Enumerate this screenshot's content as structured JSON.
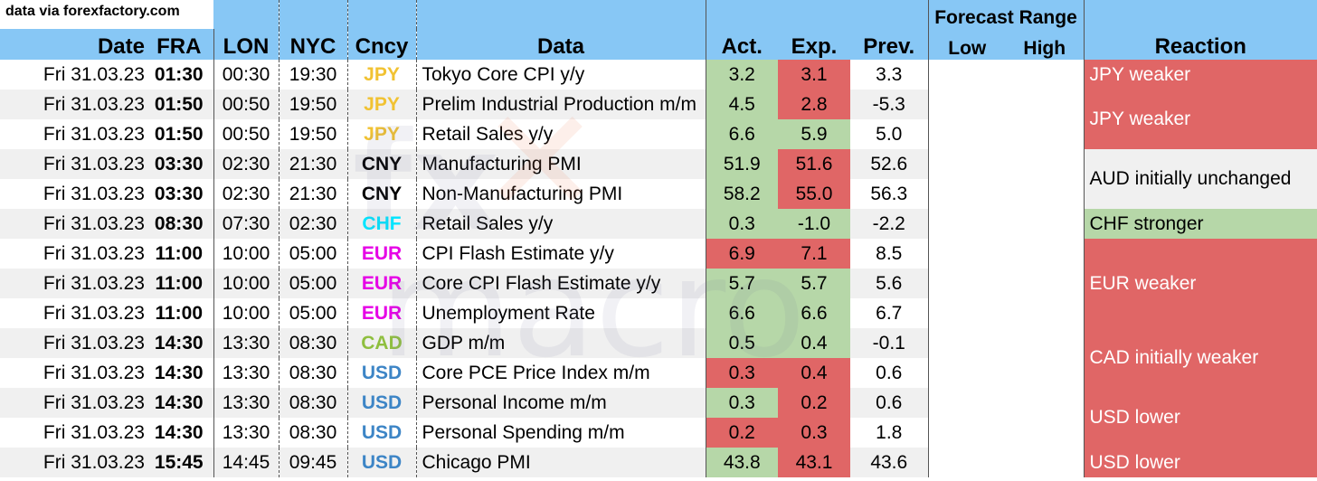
{
  "source_note": "data via forexfactory.com",
  "header": {
    "date": "Date",
    "fra": "FRA",
    "lon": "LON",
    "nyc": "NYC",
    "cncy": "Cncy",
    "data": "Data",
    "act": "Act.",
    "exp": "Exp.",
    "prev": "Prev.",
    "forecast_range": "Forecast Range",
    "low": "Low",
    "high": "High",
    "reaction": "Reaction"
  },
  "colors": {
    "header_bg": "#87c7f5",
    "green": "#b6d7a8",
    "red": "#e06666",
    "JPY": "#f1c232",
    "CNY": "#000000",
    "CHF": "#00e5ff",
    "EUR": "#e600e6",
    "CAD": "#8fbf3f",
    "USD": "#3d85c6"
  },
  "rows": [
    {
      "date": "Fri 31.03.23",
      "fra": "01:30",
      "lon": "00:30",
      "nyc": "19:30",
      "cncy": "JPY",
      "data": "Tokyo Core CPI y/y",
      "act": "3.2",
      "act_color": "green",
      "exp": "3.1",
      "exp_color": "red",
      "prev": "3.3"
    },
    {
      "date": "Fri 31.03.23",
      "fra": "01:50",
      "lon": "00:50",
      "nyc": "19:50",
      "cncy": "JPY",
      "data": "Prelim Industrial Production m/m",
      "act": "4.5",
      "act_color": "green",
      "exp": "2.8",
      "exp_color": "red",
      "prev": "-5.3"
    },
    {
      "date": "Fri 31.03.23",
      "fra": "01:50",
      "lon": "00:50",
      "nyc": "19:50",
      "cncy": "JPY",
      "data": "Retail Sales y/y",
      "act": "6.6",
      "act_color": "green",
      "exp": "5.9",
      "exp_color": "green",
      "prev": "5.0"
    },
    {
      "date": "Fri 31.03.23",
      "fra": "03:30",
      "lon": "02:30",
      "nyc": "21:30",
      "cncy": "CNY",
      "data": "Manufacturing PMI",
      "act": "51.9",
      "act_color": "green",
      "exp": "51.6",
      "exp_color": "red",
      "prev": "52.6"
    },
    {
      "date": "Fri 31.03.23",
      "fra": "03:30",
      "lon": "02:30",
      "nyc": "21:30",
      "cncy": "CNY",
      "data": "Non-Manufacturing PMI",
      "act": "58.2",
      "act_color": "green",
      "exp": "55.0",
      "exp_color": "red",
      "prev": "56.3"
    },
    {
      "date": "Fri 31.03.23",
      "fra": "08:30",
      "lon": "07:30",
      "nyc": "02:30",
      "cncy": "CHF",
      "data": "Retail Sales y/y",
      "act": "0.3",
      "act_color": "green",
      "exp": "-1.0",
      "exp_color": "green",
      "prev": "-2.2"
    },
    {
      "date": "Fri 31.03.23",
      "fra": "11:00",
      "lon": "10:00",
      "nyc": "05:00",
      "cncy": "EUR",
      "data": "CPI Flash Estimate y/y",
      "act": "6.9",
      "act_color": "red",
      "exp": "7.1",
      "exp_color": "red",
      "prev": "8.5"
    },
    {
      "date": "Fri 31.03.23",
      "fra": "11:00",
      "lon": "10:00",
      "nyc": "05:00",
      "cncy": "EUR",
      "data": "Core CPI Flash Estimate y/y",
      "act": "5.7",
      "act_color": "green",
      "exp": "5.7",
      "exp_color": "green",
      "prev": "5.6"
    },
    {
      "date": "Fri 31.03.23",
      "fra": "11:00",
      "lon": "10:00",
      "nyc": "05:00",
      "cncy": "EUR",
      "data": "Unemployment Rate",
      "act": "6.6",
      "act_color": "green",
      "exp": "6.6",
      "exp_color": "green",
      "prev": "6.7"
    },
    {
      "date": "Fri 31.03.23",
      "fra": "14:30",
      "lon": "13:30",
      "nyc": "08:30",
      "cncy": "CAD",
      "data": "GDP m/m",
      "act": "0.5",
      "act_color": "green",
      "exp": "0.4",
      "exp_color": "green",
      "prev": "-0.1"
    },
    {
      "date": "Fri 31.03.23",
      "fra": "14:30",
      "lon": "13:30",
      "nyc": "08:30",
      "cncy": "USD",
      "data": "Core PCE Price Index m/m",
      "act": "0.3",
      "act_color": "red",
      "exp": "0.4",
      "exp_color": "red",
      "prev": "0.6"
    },
    {
      "date": "Fri 31.03.23",
      "fra": "14:30",
      "lon": "13:30",
      "nyc": "08:30",
      "cncy": "USD",
      "data": "Personal Income m/m",
      "act": "0.3",
      "act_color": "green",
      "exp": "0.2",
      "exp_color": "red",
      "prev": "0.6"
    },
    {
      "date": "Fri 31.03.23",
      "fra": "14:30",
      "lon": "13:30",
      "nyc": "08:30",
      "cncy": "USD",
      "data": "Personal Spending m/m",
      "act": "0.2",
      "act_color": "red",
      "exp": "0.3",
      "exp_color": "red",
      "prev": "1.8"
    },
    {
      "date": "Fri 31.03.23",
      "fra": "15:45",
      "lon": "14:45",
      "nyc": "09:45",
      "cncy": "USD",
      "data": "Chicago PMI",
      "act": "43.8",
      "act_color": "green",
      "exp": "43.1",
      "exp_color": "red",
      "prev": "43.6"
    }
  ],
  "reactions": [
    {
      "text": "JPY weaker",
      "span": 1,
      "tone": "red"
    },
    {
      "text": "JPY weaker",
      "span": 2,
      "tone": "red"
    },
    {
      "text": "AUD initially unchanged",
      "span": 2,
      "tone": "plain"
    },
    {
      "text": "CHF stronger",
      "span": 1,
      "tone": "green"
    },
    {
      "text": "EUR weaker",
      "span": 3,
      "tone": "red"
    },
    {
      "text": "CAD initially weaker",
      "span": 2,
      "tone": "red"
    },
    {
      "text": "USD lower",
      "span": 2,
      "tone": "red"
    },
    {
      "text": "USD lower",
      "span": 1,
      "tone": "red"
    }
  ]
}
